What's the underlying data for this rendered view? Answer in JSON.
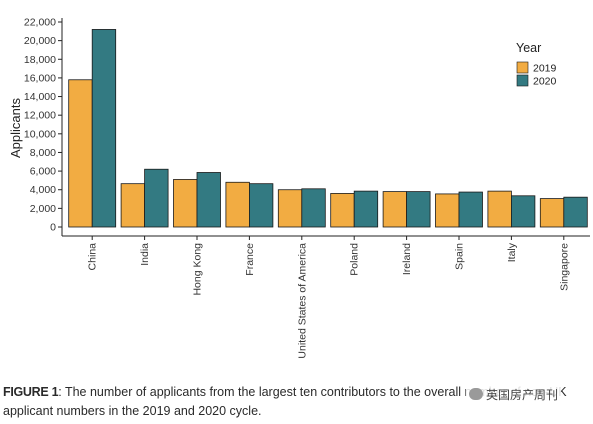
{
  "chart_data": {
    "type": "bar",
    "ylabel": "Applicants",
    "xlabel": "",
    "ylim": [
      0,
      22000
    ],
    "yticks": [
      0,
      2000,
      4000,
      6000,
      8000,
      10000,
      12000,
      14000,
      16000,
      18000,
      20000,
      22000
    ],
    "ytick_labels": [
      "0",
      "2,000",
      "4,000",
      "6,000",
      "8,000",
      "10,000",
      "12,000",
      "14,000",
      "16,000",
      "18,000",
      "20,000",
      "22,000"
    ],
    "categories": [
      "China",
      "India",
      "Hong Kong",
      "France",
      "United States of America",
      "Poland",
      "Ireland",
      "Spain",
      "Italy",
      "Singapore"
    ],
    "legend": {
      "title": "Year",
      "placement": "top-right"
    },
    "series": [
      {
        "name": "2019",
        "color": "#F2AC42",
        "values": [
          15800,
          4650,
          5100,
          4800,
          4000,
          3600,
          3800,
          3550,
          3850,
          3050
        ]
      },
      {
        "name": "2020",
        "color": "#337A82",
        "values": [
          21200,
          6200,
          5850,
          4650,
          4100,
          3850,
          3800,
          3750,
          3350,
          3200
        ]
      }
    ],
    "grid": false
  },
  "caption": {
    "label": "FIGURE 1",
    "text": ": The number of applicants from the largest ten contributors to the overall number of non-UK applicant numbers in the 2019 and 2020 cycle."
  },
  "watermark": {
    "text": "英国房产周刊",
    "icon": "wechat-icon"
  }
}
